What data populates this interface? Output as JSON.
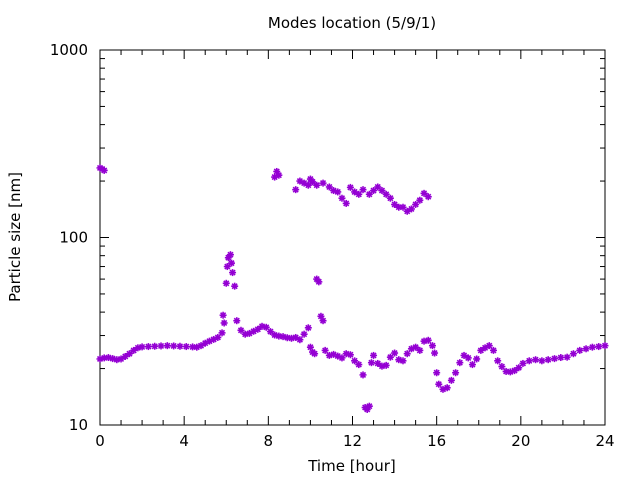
{
  "chart_data": {
    "type": "scatter",
    "title": "Modes location (5/9/1)",
    "xlabel": "Time [hour]",
    "ylabel": "Particle size [nm]",
    "xlim": [
      0,
      24
    ],
    "ylim": [
      10,
      1000
    ],
    "y_scale": "log",
    "grid": false,
    "x_ticks": [
      0,
      4,
      8,
      12,
      16,
      20,
      24
    ],
    "x_tick_labels": [
      "0",
      "4",
      "8",
      "12",
      "16",
      "20",
      "24"
    ],
    "y_ticks": [
      10,
      100,
      1000
    ],
    "y_tick_labels": [
      "10",
      "100",
      "1000"
    ],
    "marker_color": "#9400d3",
    "series": [
      {
        "values_note": "",
        "points": [
          [
            0.0,
            235
          ],
          [
            0.1,
            232
          ],
          [
            0.2,
            228
          ],
          [
            0.0,
            22.5
          ],
          [
            0.2,
            22.8
          ],
          [
            0.4,
            22.9
          ],
          [
            0.6,
            22.6
          ],
          [
            0.8,
            22.3
          ],
          [
            1.0,
            22.5
          ],
          [
            1.2,
            23.2
          ],
          [
            1.4,
            24.0
          ],
          [
            1.6,
            25.0
          ],
          [
            1.8,
            25.8
          ],
          [
            2.0,
            26.1
          ],
          [
            2.3,
            26.2
          ],
          [
            2.6,
            26.3
          ],
          [
            2.9,
            26.4
          ],
          [
            3.2,
            26.5
          ],
          [
            3.5,
            26.4
          ],
          [
            3.8,
            26.3
          ],
          [
            4.1,
            26.2
          ],
          [
            4.4,
            26.1
          ],
          [
            4.6,
            26.0
          ],
          [
            4.8,
            26.5
          ],
          [
            5.0,
            27.3
          ],
          [
            5.2,
            28.0
          ],
          [
            5.4,
            28.6
          ],
          [
            5.6,
            29.3
          ],
          [
            5.8,
            31.0
          ],
          [
            5.85,
            38.5
          ],
          [
            5.9,
            35.0
          ],
          [
            6.0,
            57.0
          ],
          [
            6.05,
            70.0
          ],
          [
            6.1,
            78.0
          ],
          [
            6.2,
            81.0
          ],
          [
            6.25,
            73.0
          ],
          [
            6.3,
            65.0
          ],
          [
            6.4,
            55.0
          ],
          [
            6.5,
            36.0
          ],
          [
            6.7,
            32.0
          ],
          [
            6.9,
            30.5
          ],
          [
            7.1,
            30.8
          ],
          [
            7.3,
            31.6
          ],
          [
            7.5,
            32.4
          ],
          [
            7.7,
            33.6
          ],
          [
            7.9,
            33.2
          ],
          [
            8.1,
            31.5
          ],
          [
            8.3,
            30.2
          ],
          [
            8.5,
            29.8
          ],
          [
            8.7,
            29.6
          ],
          [
            8.9,
            29.2
          ],
          [
            9.1,
            29.0
          ],
          [
            9.3,
            29.3
          ],
          [
            9.5,
            28.5
          ],
          [
            9.7,
            30.5
          ],
          [
            9.9,
            33.0
          ],
          [
            10.0,
            26.0
          ],
          [
            10.1,
            24.5
          ],
          [
            10.2,
            24.0
          ],
          [
            10.3,
            60.0
          ],
          [
            10.4,
            58.0
          ],
          [
            10.5,
            38.0
          ],
          [
            10.6,
            36.0
          ],
          [
            10.7,
            25.0
          ],
          [
            10.9,
            23.5
          ],
          [
            11.1,
            23.8
          ],
          [
            11.3,
            23.3
          ],
          [
            11.5,
            22.8
          ],
          [
            11.7,
            24.0
          ],
          [
            11.9,
            23.7
          ],
          [
            12.1,
            22.0
          ],
          [
            12.3,
            21.0
          ],
          [
            12.5,
            18.5
          ],
          [
            12.6,
            12.4
          ],
          [
            12.7,
            12.1
          ],
          [
            12.8,
            12.6
          ],
          [
            12.9,
            21.5
          ],
          [
            13.0,
            23.5
          ],
          [
            13.2,
            21.3
          ],
          [
            13.4,
            20.6
          ],
          [
            13.6,
            20.8
          ],
          [
            13.8,
            23.0
          ],
          [
            14.0,
            24.2
          ],
          [
            14.2,
            22.3
          ],
          [
            14.4,
            22.0
          ],
          [
            14.6,
            24.0
          ],
          [
            14.8,
            25.5
          ],
          [
            15.0,
            26.0
          ],
          [
            15.2,
            25.0
          ],
          [
            15.4,
            28.0
          ],
          [
            15.6,
            28.3
          ],
          [
            15.8,
            26.5
          ],
          [
            15.9,
            24.2
          ],
          [
            16.0,
            19.0
          ],
          [
            16.1,
            16.5
          ],
          [
            16.3,
            15.5
          ],
          [
            16.5,
            15.8
          ],
          [
            16.7,
            17.3
          ],
          [
            16.9,
            19.0
          ],
          [
            17.1,
            21.5
          ],
          [
            17.3,
            23.5
          ],
          [
            17.5,
            22.8
          ],
          [
            17.7,
            21.0
          ],
          [
            17.9,
            22.5
          ],
          [
            18.1,
            25.0
          ],
          [
            18.3,
            25.8
          ],
          [
            18.5,
            26.5
          ],
          [
            18.7,
            25.0
          ],
          [
            18.9,
            22.0
          ],
          [
            19.1,
            20.5
          ],
          [
            19.3,
            19.3
          ],
          [
            19.5,
            19.2
          ],
          [
            19.7,
            19.5
          ],
          [
            19.9,
            20.2
          ],
          [
            20.1,
            21.3
          ],
          [
            20.4,
            22.0
          ],
          [
            20.7,
            22.3
          ],
          [
            21.0,
            22.0
          ],
          [
            21.3,
            22.3
          ],
          [
            21.6,
            22.6
          ],
          [
            21.9,
            22.9
          ],
          [
            22.2,
            23.0
          ],
          [
            22.5,
            24.0
          ],
          [
            22.8,
            25.0
          ],
          [
            23.1,
            25.5
          ],
          [
            23.4,
            26.0
          ],
          [
            23.7,
            26.2
          ],
          [
            24.0,
            26.5
          ],
          [
            8.3,
            210
          ],
          [
            8.4,
            225
          ],
          [
            8.5,
            215
          ],
          [
            9.3,
            180
          ],
          [
            9.5,
            200
          ],
          [
            9.7,
            195
          ],
          [
            9.9,
            190
          ],
          [
            10.0,
            205
          ],
          [
            10.1,
            198
          ],
          [
            10.3,
            190
          ],
          [
            10.6,
            195
          ],
          [
            10.9,
            186
          ],
          [
            11.1,
            178
          ],
          [
            11.3,
            175
          ],
          [
            11.5,
            162
          ],
          [
            11.7,
            152
          ],
          [
            11.9,
            185
          ],
          [
            12.1,
            175
          ],
          [
            12.3,
            170
          ],
          [
            12.5,
            180
          ],
          [
            12.8,
            170
          ],
          [
            13.0,
            178
          ],
          [
            13.2,
            186
          ],
          [
            13.4,
            178
          ],
          [
            13.6,
            170
          ],
          [
            13.8,
            162
          ],
          [
            14.0,
            150
          ],
          [
            14.2,
            145
          ],
          [
            14.4,
            145
          ],
          [
            14.6,
            138
          ],
          [
            14.8,
            142
          ],
          [
            15.0,
            150
          ],
          [
            15.2,
            158
          ],
          [
            15.4,
            172
          ],
          [
            15.6,
            165
          ]
        ]
      }
    ]
  }
}
